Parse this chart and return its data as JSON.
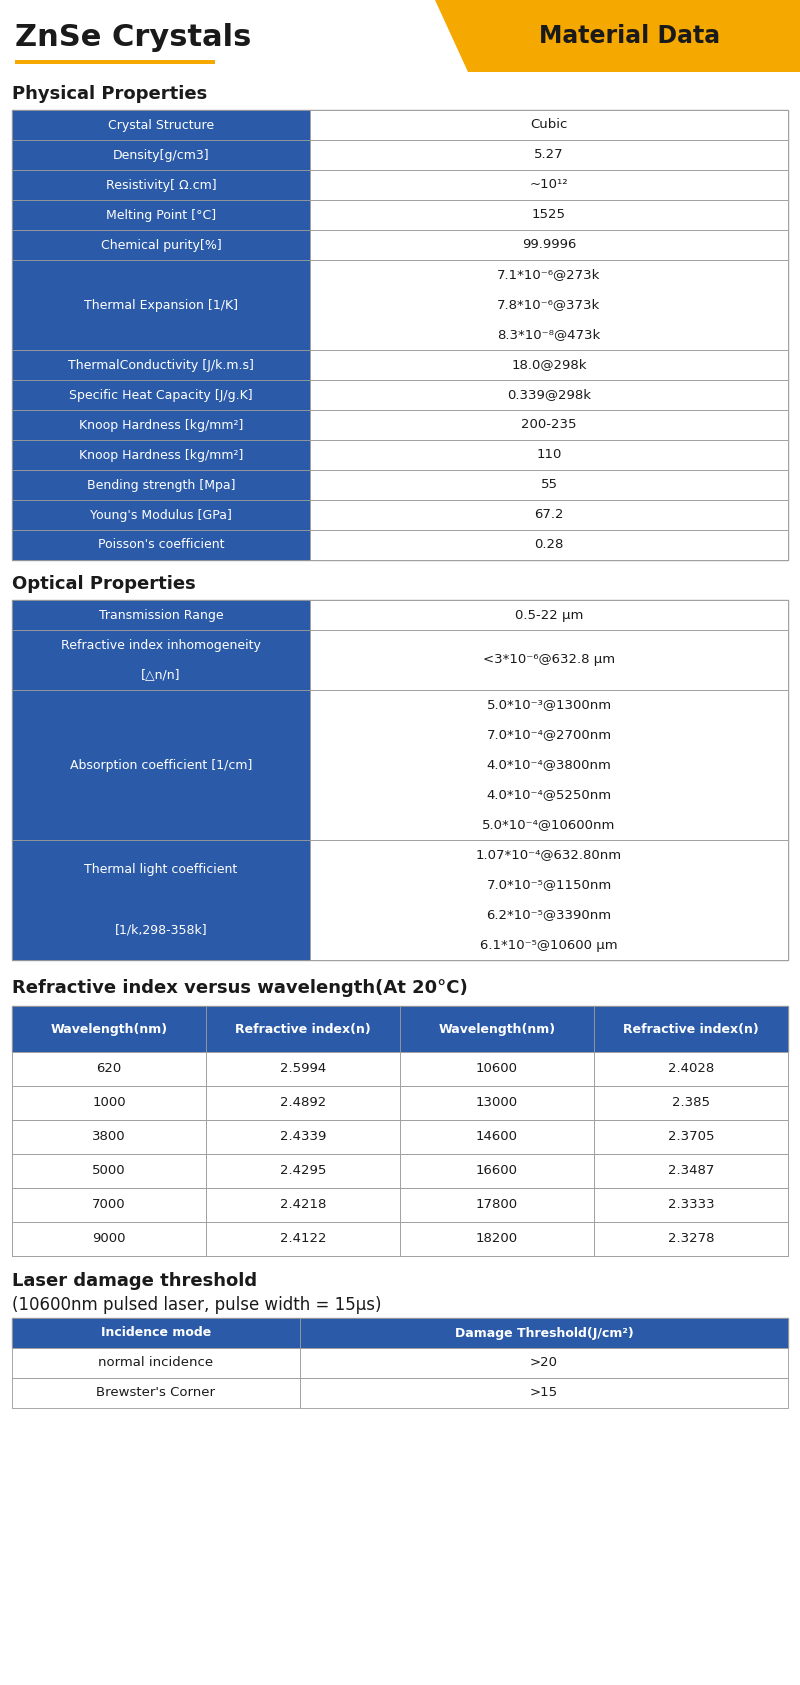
{
  "title": "ZnSe Crystals",
  "title_badge": "Material Data",
  "orange": "#F5A800",
  "blue_bg": "#2B5BA8",
  "white_fg": "#FFFFFF",
  "black_fg": "#1A1A1A",
  "border_color": "#999999",
  "section_titles": [
    "Physical Properties",
    "Optical Properties",
    "Refractive index versus wavelength(At 20°C)",
    "Laser damage threshold",
    "(10600nm pulsed laser, pulse width = 15μs)"
  ],
  "physical_data": [
    [
      "Crystal Structure",
      "Cubic",
      1
    ],
    [
      "Density[g/cm3]",
      "5.27",
      1
    ],
    [
      "Resistivity[ Ω.cm]",
      "~10¹²",
      1
    ],
    [
      "Melting Point [°C]",
      "1525",
      1
    ],
    [
      "Chemical purity[%]",
      "99.9996",
      1
    ],
    [
      "Thermal Expansion [1/K]",
      "7.1*10⁻⁶@273k\n7.8*10⁻⁶@373k\n8.3*10⁻⁸@473k",
      3
    ],
    [
      "ThermalConductivity [J/k.m.s]",
      "18.0@298k",
      1
    ],
    [
      "Specific Heat Capacity [J/g.K]",
      "0.339@298k",
      1
    ],
    [
      "Knoop Hardness [kg/mm²]",
      "200-235",
      1
    ],
    [
      "Knoop Hardness [kg/mm²]",
      "110",
      1
    ],
    [
      "Bending strength [Mpa]",
      "55",
      1
    ],
    [
      "Young's Modulus [GPa]",
      "67.2",
      1
    ],
    [
      "Poisson's coefficient",
      "0.28",
      1
    ]
  ],
  "optical_data": [
    [
      "Transmission Range",
      "0.5-22 μm",
      1,
      1
    ],
    [
      "Refractive index inhomogeneity\n[△n/n]",
      "<3*10⁻⁶@632.8 μm",
      2,
      1
    ],
    [
      "Absorption coefficient [1/cm]",
      "5.0*10⁻³@1300nm\n7.0*10⁻⁴@2700nm\n4.0*10⁻⁴@3800nm\n4.0*10⁻⁴@5250nm\n5.0*10⁻⁴@10600nm",
      1,
      5
    ],
    [
      "Thermal light coefficient\n[1/k,298-358k]",
      "1.07*10⁻⁴@632.80nm\n7.0*10⁻⁵@1150nm\n6.2*10⁻⁵@3390nm\n6.1*10⁻⁵@10600 μm",
      2,
      4
    ]
  ],
  "refractive_headers": [
    "Wavelength(nm)",
    "Refractive index(n)",
    "Wavelength(nm)",
    "Refractive index(n)"
  ],
  "refractive_data": [
    [
      "620",
      "2.5994",
      "10600",
      "2.4028"
    ],
    [
      "1000",
      "2.4892",
      "13000",
      "2.385"
    ],
    [
      "3800",
      "2.4339",
      "14600",
      "2.3705"
    ],
    [
      "5000",
      "2.4295",
      "16600",
      "2.3487"
    ],
    [
      "7000",
      "2.4218",
      "17800",
      "2.3333"
    ],
    [
      "9000",
      "2.4122",
      "18200",
      "2.3278"
    ]
  ],
  "laser_headers": [
    "Incidence mode",
    "Damage Threshold(J/cm²)"
  ],
  "laser_data": [
    [
      "normal incidence",
      ">20"
    ],
    [
      "Brewster's Corner",
      ">15"
    ]
  ]
}
